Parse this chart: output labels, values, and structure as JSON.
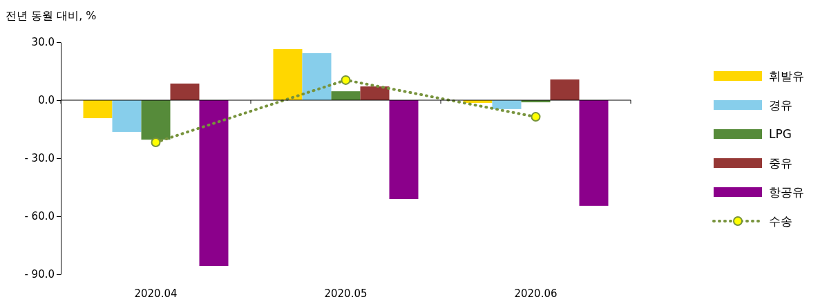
{
  "chart_data": {
    "type": "bar",
    "ylabel": "전년 동월 대비, %",
    "categories": [
      "2020.04",
      "2020.05",
      "2020.06"
    ],
    "ylim": [
      -90,
      30
    ],
    "yticks": [
      {
        "value": 30,
        "label": "30.0"
      },
      {
        "value": 0,
        "label": "0.0"
      },
      {
        "value": -30,
        "label": "- 30.0"
      },
      {
        "value": -60,
        "label": "- 60.0"
      },
      {
        "value": -90,
        "label": "- 90.0"
      }
    ],
    "series": [
      {
        "name": "휘발유",
        "color": "#ffd700",
        "values": [
          -9.3,
          26.4,
          -1.4
        ]
      },
      {
        "name": "경유",
        "color": "#87ceeb",
        "values": [
          -16.4,
          24.3,
          -4.6
        ]
      },
      {
        "name": "LPG",
        "color": "#568b3a",
        "values": [
          -20.4,
          4.6,
          -1.1
        ]
      },
      {
        "name": "중유",
        "color": "#953735",
        "values": [
          8.6,
          7.1,
          10.7
        ]
      },
      {
        "name": "항공유",
        "color": "#8b008b",
        "values": [
          -85.7,
          -51.1,
          -54.6
        ]
      },
      {
        "name": "수송",
        "type": "line",
        "color": "#77933c",
        "values": [
          -21.8,
          10.4,
          -8.6
        ]
      }
    ],
    "marker": "circle",
    "line_style": "dotted",
    "legend": "right"
  }
}
